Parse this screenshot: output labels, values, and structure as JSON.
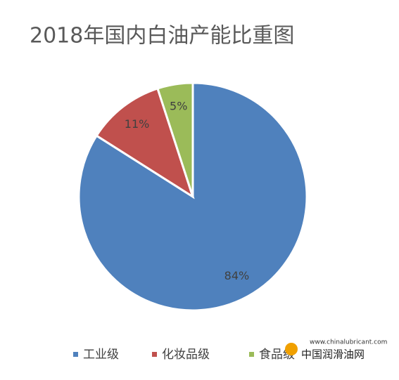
{
  "chart_data": {
    "type": "pie",
    "title": "2018年国内白油产能比重图",
    "categories": [
      "工业级",
      "化妆品级",
      "食品级"
    ],
    "values": [
      84,
      11,
      5
    ],
    "value_labels": [
      "84%",
      "11%",
      "5%"
    ],
    "colors": [
      "#4f81bd",
      "#c0504d",
      "#9bbb59"
    ],
    "legend": "bottom"
  },
  "watermark": {
    "url": "www.chinalubricant.com",
    "name": "中国润滑油网"
  }
}
